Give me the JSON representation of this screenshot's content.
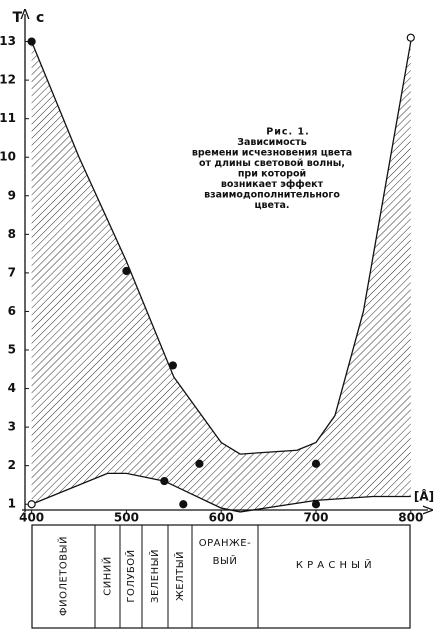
{
  "chart_data": {
    "type": "scatter",
    "y_label": "Т",
    "y_unit": "с",
    "x_label": "[Å]",
    "caption": [
      "Рис. 1.",
      "Зависимость",
      "времени исчезновения цвета",
      "от длины световой волны,",
      "при которой",
      "возникает эффект",
      "взаимодополнительного",
      "цвета."
    ],
    "xlim": [
      393,
      815
    ],
    "ylim": [
      0.85,
      13.3
    ],
    "xticks": [
      400,
      500,
      600,
      700,
      800
    ],
    "yticks": [
      1,
      2,
      3,
      4,
      5,
      6,
      7,
      8,
      9,
      10,
      11,
      12,
      13
    ],
    "points": {
      "x": [
        400,
        800,
        500,
        549,
        540,
        560,
        577,
        700,
        700,
        400
      ],
      "values": [
        13,
        13.1,
        7.05,
        4.6,
        1.6,
        1.0,
        2.05,
        2.05,
        1.0,
        1.0
      ],
      "open": [
        false,
        true,
        false,
        false,
        false,
        false,
        false,
        false,
        false,
        true
      ]
    },
    "upper": {
      "x": [
        400,
        450,
        500,
        550,
        600,
        620,
        680,
        700,
        720,
        750,
        800
      ],
      "values": [
        13,
        10,
        7.3,
        4.3,
        2.6,
        2.3,
        2.4,
        2.6,
        3.3,
        6,
        13
      ]
    },
    "lower": {
      "x": [
        400,
        480,
        500,
        540,
        600,
        620,
        700,
        760,
        800
      ],
      "values": [
        1,
        1.8,
        1.8,
        1.6,
        0.9,
        0.8,
        1.1,
        1.2,
        1.2
      ]
    },
    "bands": [
      [
        "ФИОЛЕТОВЫЙ"
      ],
      [
        "СИНИЙ"
      ],
      [
        "ГОЛУБОЙ"
      ],
      [
        "ЗЕЛЕНЫЙ"
      ],
      [
        "ЖЕЛТЫЙ"
      ],
      [
        "ОРАНЖЕ-",
        "ВЫЙ"
      ],
      [
        "К Р А С Н Ы Й"
      ]
    ]
  }
}
